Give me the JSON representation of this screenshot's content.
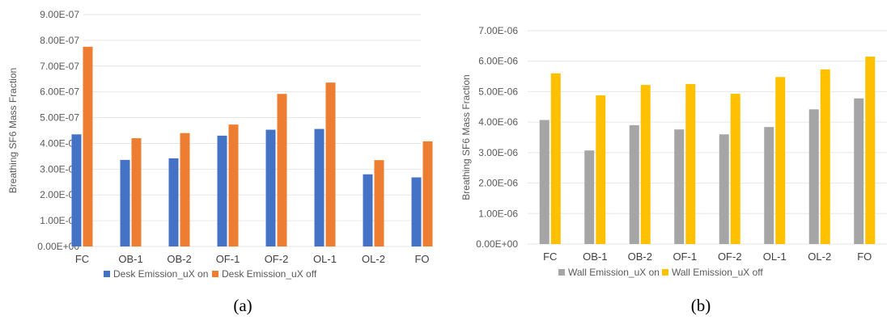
{
  "chart_data": [
    {
      "type": "bar",
      "panel_label": "(a)",
      "ylabel": "Breathing SF6 Mass Fraction",
      "categories": [
        "FC",
        "OB-1",
        "OB-2",
        "OF-1",
        "OF-2",
        "OL-1",
        "OL-2",
        "FO"
      ],
      "y_ticks": [
        "0.00E+00",
        "1.00E-07",
        "2.00E-07",
        "3.00E-07",
        "4.00E-07",
        "5.00E-07",
        "6.00E-07",
        "7.00E-07",
        "8.00E-07",
        "9.00E-07"
      ],
      "ylim": [
        0,
        9e-07
      ],
      "grid": true,
      "legend_position": "bottom",
      "series": [
        {
          "name": "Desk Emission_uX on",
          "color": "#4472C4",
          "values": [
            4.35e-07,
            3.36e-07,
            3.42e-07,
            4.3e-07,
            4.53e-07,
            4.56e-07,
            2.8e-07,
            2.68e-07
          ]
        },
        {
          "name": "Desk Emission_uX off",
          "color": "#ED7D31",
          "values": [
            7.75e-07,
            4.2e-07,
            4.4e-07,
            4.73e-07,
            5.92e-07,
            6.36e-07,
            3.35e-07,
            4.08e-07
          ]
        }
      ]
    },
    {
      "type": "bar",
      "panel_label": "(b)",
      "ylabel": "Breathing SF6 Mass Fraction",
      "categories": [
        "FC",
        "OB-1",
        "OB-2",
        "OF-1",
        "OF-2",
        "OL-1",
        "OL-2",
        "FO"
      ],
      "y_ticks": [
        "0.00E+00",
        "1.00E-06",
        "2.00E-06",
        "3.00E-06",
        "4.00E-06",
        "5.00E-06",
        "6.00E-06",
        "7.00E-06"
      ],
      "ylim": [
        0,
        7e-06
      ],
      "grid": true,
      "legend_position": "bottom",
      "series": [
        {
          "name": "Wall Emission_uX on",
          "color": "#A5A5A5",
          "values": [
            4.07e-06,
            3.07e-06,
            3.9e-06,
            3.76e-06,
            3.6e-06,
            3.84e-06,
            4.42e-06,
            4.78e-06
          ]
        },
        {
          "name": "Wall Emission_uX off",
          "color": "#FFC000",
          "values": [
            5.6e-06,
            4.88e-06,
            5.22e-06,
            5.25e-06,
            4.93e-06,
            5.48e-06,
            5.73e-06,
            6.15e-06
          ]
        }
      ]
    }
  ]
}
